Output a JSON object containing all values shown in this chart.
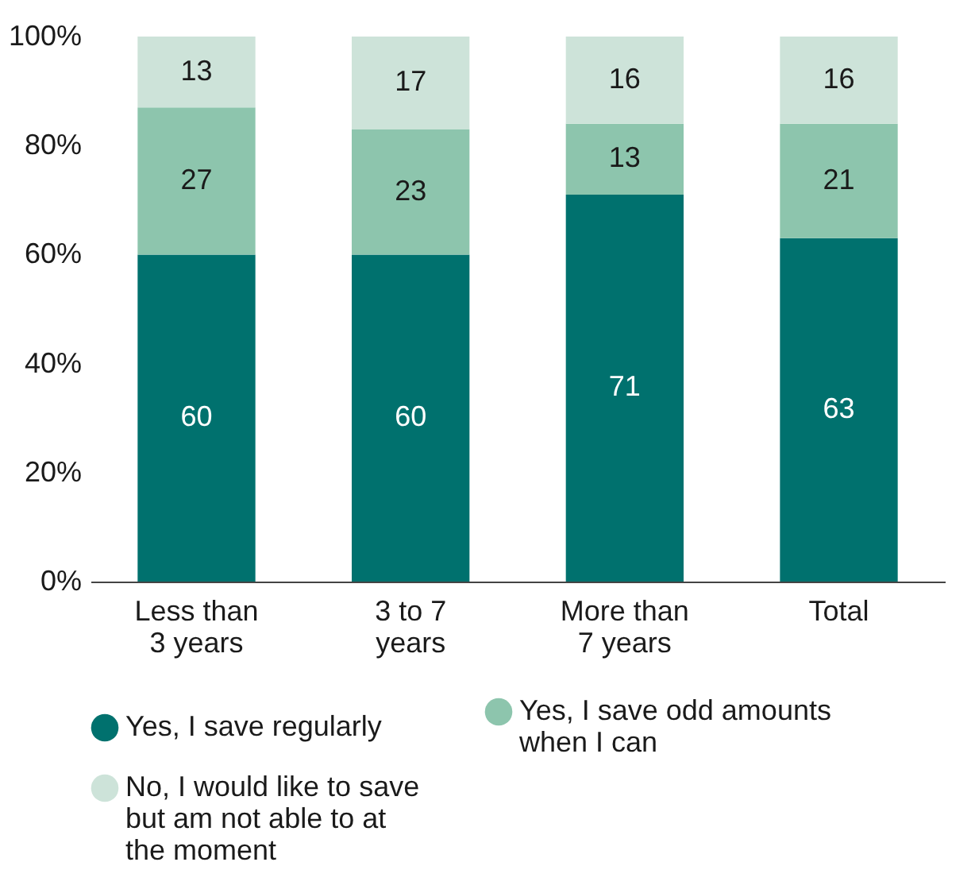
{
  "chart_data": {
    "type": "bar",
    "stacked": true,
    "categories": [
      "Less than 3 years",
      "3 to 7 years",
      "More than 7 years",
      "Total"
    ],
    "series": [
      {
        "name": "Yes, I save regularly",
        "color": "#00716e",
        "values": [
          60,
          60,
          71,
          63
        ]
      },
      {
        "name": "Yes, I save odd amounts when I can",
        "color": "#8dc5ad",
        "values": [
          27,
          23,
          13,
          21
        ]
      },
      {
        "name": "No, I would like to save but am not able to at the moment",
        "color": "#cde3d9",
        "values": [
          13,
          17,
          16,
          16
        ]
      }
    ],
    "ylim": [
      0,
      100
    ],
    "yticks": [
      {
        "value": 0,
        "label": "0%"
      },
      {
        "value": 20,
        "label": "20%"
      },
      {
        "value": 40,
        "label": "40%"
      },
      {
        "value": 60,
        "label": "60%"
      },
      {
        "value": 80,
        "label": "80%"
      },
      {
        "value": 100,
        "label": "100%"
      }
    ],
    "data_labels": true,
    "legend": "bottom"
  }
}
